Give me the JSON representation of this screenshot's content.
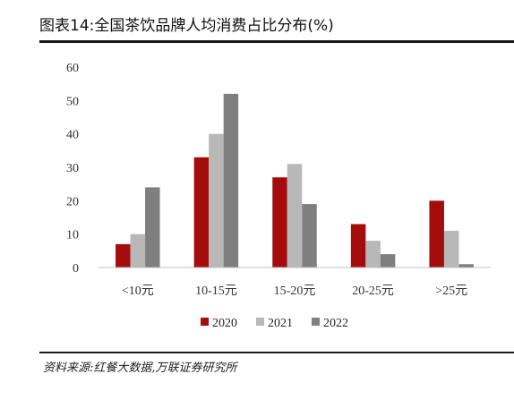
{
  "title": "图表14:全国茶饮品牌人均消费占比分布(%)",
  "source": "资料来源:红餐大数据,万联证券研究所",
  "chart_data": {
    "type": "bar",
    "categories": [
      "<10元",
      "10-15元",
      "15-20元",
      "20-25元",
      ">25元"
    ],
    "series": [
      {
        "name": "2020",
        "color": "#a50d0d",
        "values": [
          7,
          33,
          27,
          13,
          20
        ]
      },
      {
        "name": "2021",
        "color": "#b8b8b8",
        "values": [
          10,
          40,
          31,
          8,
          11
        ]
      },
      {
        "name": "2022",
        "color": "#7f7f7f",
        "values": [
          24,
          52,
          19,
          4,
          1
        ]
      }
    ],
    "ylim": [
      0,
      60
    ],
    "yticks": [
      0,
      10,
      20,
      30,
      40,
      50,
      60
    ],
    "grid": false,
    "legend_position": "bottom"
  }
}
